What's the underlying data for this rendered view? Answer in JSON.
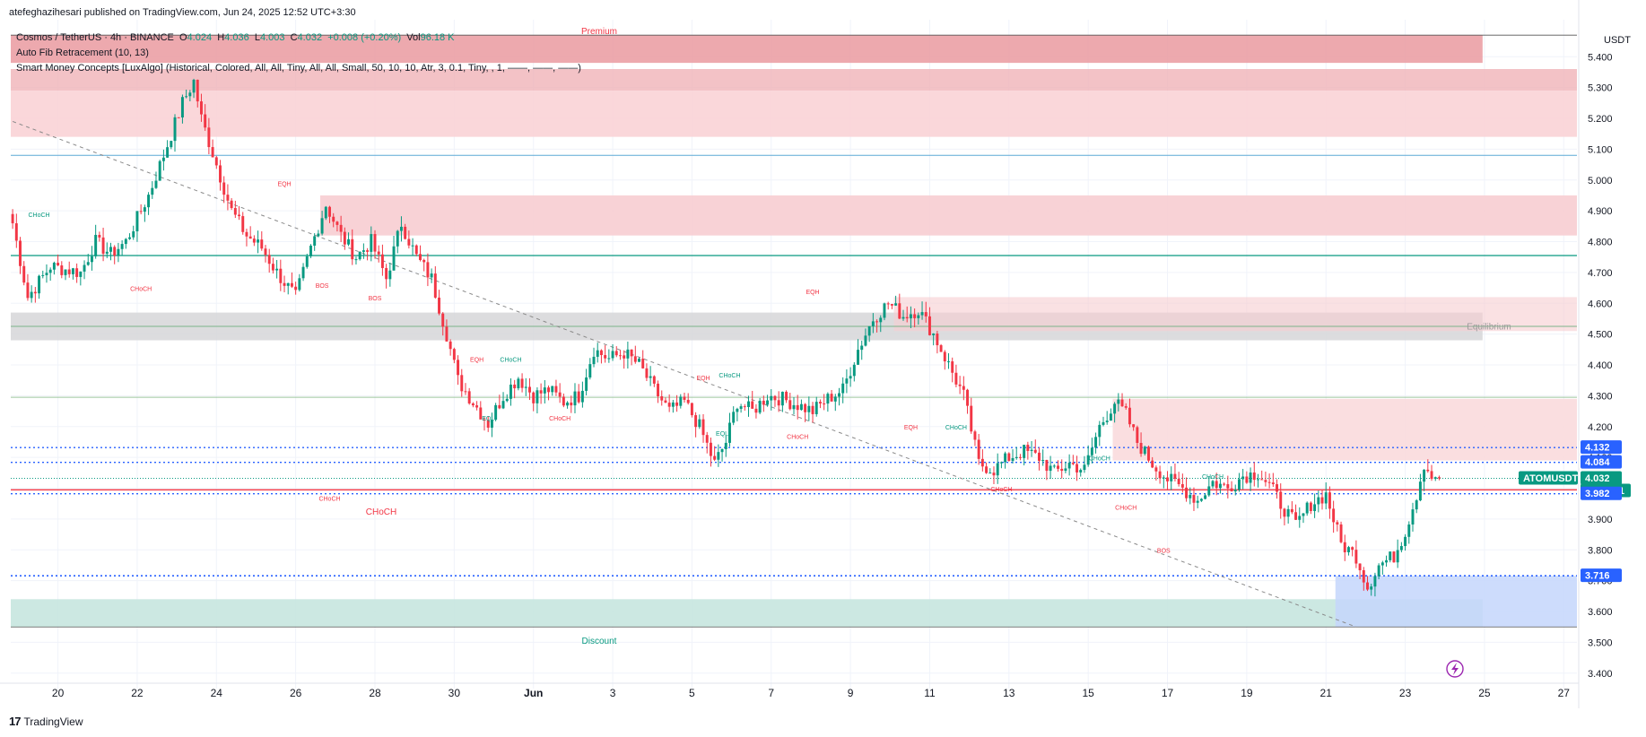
{
  "header": {
    "publisher": "atefeghazihesari published on TradingView.com, Jun 24, 2025 12:52 UTC+3:30"
  },
  "legend": {
    "symbol": "Cosmos / TetherUS · 4h · BINANCE",
    "o_label": "O",
    "o": "4.024",
    "h_label": "H",
    "h": "4.036",
    "l_label": "L",
    "l": "4.003",
    "c_label": "C",
    "c": "4.032",
    "change": "+0.008 (+0.20%)",
    "vol_label": "Vol",
    "vol": "96.18 K",
    "indicator1": "Auto Fib Retracement (10, 13)",
    "indicator2": "Smart Money Concepts [LuxAlgo] (Historical, Colored, All, All, Tiny, All, All, Small, 50, 10, 10, Atr, 3, 0.1, Tiny, , 1, ——, ——, ——)"
  },
  "footer": {
    "brand": "TradingView"
  },
  "colors": {
    "up": "#089981",
    "down": "#f23645",
    "fib_blue": "#2962ff",
    "axis_text": "#131722"
  },
  "chart_data": {
    "type": "candlestick",
    "symbol": "ATOMUSDT",
    "interval": "4h",
    "currency": "USDT",
    "ylim": [
      3.35,
      5.52
    ],
    "y_ticks": [
      3.4,
      3.5,
      3.6,
      3.7,
      3.8,
      3.9,
      4.0,
      4.1,
      4.2,
      4.3,
      4.4,
      4.5,
      4.6,
      4.7,
      4.8,
      4.9,
      5.0,
      5.1,
      5.2,
      5.3,
      5.4
    ],
    "x_ticks": [
      "20",
      "22",
      "24",
      "26",
      "28",
      "30",
      "Jun",
      "3",
      "5",
      "7",
      "9",
      "11",
      "13",
      "15",
      "17",
      "19",
      "21",
      "23",
      "25",
      "27"
    ],
    "price_badges": [
      {
        "label": "4.132",
        "value": 4.132,
        "color": "#2962ff"
      },
      {
        "label": "4.084",
        "value": 4.084,
        "color": "#2962ff"
      },
      {
        "label": "ATOMUSDT",
        "value": 4.032,
        "color": "#089981"
      },
      {
        "label": "4.032",
        "value": 4.032,
        "color": "#089981"
      },
      {
        "label": "02:37:01",
        "value": 4.032,
        "color": "#089981"
      },
      {
        "label": "3.982",
        "value": 3.982,
        "color": "#2962ff"
      },
      {
        "label": "3.716",
        "value": 3.716,
        "color": "#2962ff"
      }
    ],
    "zone_labels": {
      "premium": "Premium",
      "discount": "Discount",
      "equilibrium": "Equilibrium"
    },
    "close_anchors": [
      [
        0,
        4.86
      ],
      [
        4,
        4.62
      ],
      [
        10,
        4.72
      ],
      [
        18,
        4.7
      ],
      [
        22,
        4.8
      ],
      [
        26,
        4.76
      ],
      [
        30,
        4.8
      ],
      [
        36,
        4.95
      ],
      [
        40,
        5.08
      ],
      [
        45,
        5.25
      ],
      [
        48,
        5.32
      ],
      [
        50,
        5.2
      ],
      [
        54,
        5.05
      ],
      [
        58,
        4.9
      ],
      [
        62,
        4.82
      ],
      [
        66,
        4.78
      ],
      [
        70,
        4.7
      ],
      [
        75,
        4.62
      ],
      [
        79,
        4.78
      ],
      [
        83,
        4.92
      ],
      [
        87,
        4.82
      ],
      [
        91,
        4.75
      ],
      [
        95,
        4.8
      ],
      [
        99,
        4.68
      ],
      [
        103,
        4.86
      ],
      [
        107,
        4.75
      ],
      [
        111,
        4.68
      ],
      [
        115,
        4.5
      ],
      [
        118,
        4.35
      ],
      [
        122,
        4.28
      ],
      [
        126,
        4.21
      ],
      [
        130,
        4.3
      ],
      [
        134,
        4.36
      ],
      [
        138,
        4.3
      ],
      [
        142,
        4.32
      ],
      [
        146,
        4.28
      ],
      [
        150,
        4.3
      ],
      [
        154,
        4.45
      ],
      [
        158,
        4.42
      ],
      [
        162,
        4.44
      ],
      [
        166,
        4.4
      ],
      [
        170,
        4.32
      ],
      [
        174,
        4.25
      ],
      [
        178,
        4.28
      ],
      [
        182,
        4.2
      ],
      [
        186,
        4.08
      ],
      [
        189,
        4.15
      ],
      [
        192,
        4.28
      ],
      [
        196,
        4.25
      ],
      [
        200,
        4.3
      ],
      [
        204,
        4.29
      ],
      [
        208,
        4.27
      ],
      [
        212,
        4.25
      ],
      [
        216,
        4.29
      ],
      [
        220,
        4.32
      ],
      [
        224,
        4.45
      ],
      [
        228,
        4.55
      ],
      [
        232,
        4.6
      ],
      [
        236,
        4.56
      ],
      [
        240,
        4.58
      ],
      [
        244,
        4.5
      ],
      [
        248,
        4.4
      ],
      [
        252,
        4.3
      ],
      [
        256,
        4.08
      ],
      [
        260,
        4.06
      ],
      [
        264,
        4.1
      ],
      [
        268,
        4.12
      ],
      [
        272,
        4.1
      ],
      [
        276,
        4.05
      ],
      [
        280,
        4.08
      ],
      [
        284,
        4.06
      ],
      [
        288,
        4.2
      ],
      [
        292,
        4.28
      ],
      [
        295,
        4.24
      ],
      [
        298,
        4.15
      ],
      [
        302,
        4.08
      ],
      [
        306,
        4.03
      ],
      [
        310,
        4.0
      ],
      [
        314,
        3.96
      ],
      [
        318,
        4.02
      ],
      [
        322,
        4.0
      ],
      [
        326,
        4.04
      ],
      [
        330,
        4.05
      ],
      [
        333,
        4.01
      ],
      [
        336,
        3.95
      ],
      [
        340,
        3.88
      ],
      [
        344,
        3.95
      ],
      [
        348,
        3.98
      ],
      [
        352,
        3.82
      ],
      [
        356,
        3.78
      ],
      [
        359,
        3.68
      ],
      [
        362,
        3.75
      ],
      [
        366,
        3.78
      ],
      [
        369,
        3.86
      ],
      [
        372,
        3.98
      ],
      [
        374,
        4.08
      ],
      [
        377,
        4.02
      ],
      [
        378,
        4.032
      ]
    ],
    "annotations": [
      {
        "text": "CHoCH",
        "date": 7,
        "y": 4.88,
        "color": "#089981"
      },
      {
        "text": "CHoCH",
        "date": 34,
        "y": 4.64,
        "color": "#f23645"
      },
      {
        "text": "EQH",
        "date": 72,
        "y": 4.98,
        "color": "#f23645"
      },
      {
        "text": "BOS",
        "date": 82,
        "y": 4.65,
        "color": "#f23645"
      },
      {
        "text": "BOS",
        "date": 96,
        "y": 4.61,
        "color": "#f23645"
      },
      {
        "text": "EQH",
        "date": 123,
        "y": 4.41,
        "color": "#f23645"
      },
      {
        "text": "CHoCH",
        "date": 132,
        "y": 4.41,
        "color": "#089981"
      },
      {
        "text": "EQL",
        "date": 126,
        "y": 4.22,
        "color": "#089981"
      },
      {
        "text": "CHoCH",
        "date": 145,
        "y": 4.22,
        "color": "#f23645"
      },
      {
        "text": "EQH",
        "date": 183,
        "y": 4.35,
        "color": "#f23645"
      },
      {
        "text": "CHoCH",
        "date": 190,
        "y": 4.36,
        "color": "#089981"
      },
      {
        "text": "EQL",
        "date": 188,
        "y": 4.17,
        "color": "#089981"
      },
      {
        "text": "CHoCH",
        "date": 208,
        "y": 4.16,
        "color": "#f23645"
      },
      {
        "text": "EQH",
        "date": 212,
        "y": 4.63,
        "color": "#f23645"
      },
      {
        "text": "CHoCH",
        "date": 84,
        "y": 3.96,
        "color": "#f23645"
      },
      {
        "text": "EQH",
        "date": 238,
        "y": 4.19,
        "color": "#f23645"
      },
      {
        "text": "CHoCH",
        "date": 250,
        "y": 4.19,
        "color": "#089981"
      },
      {
        "text": "CHoCH",
        "date": 288,
        "y": 4.09,
        "color": "#089981"
      },
      {
        "text": "CHoCH",
        "date": 262,
        "y": 3.99,
        "color": "#f23645"
      },
      {
        "text": "CHoCH",
        "date": 295,
        "y": 3.93,
        "color": "#f23645"
      },
      {
        "text": "CHoCH",
        "date": 318,
        "y": 4.03,
        "color": "#089981"
      },
      {
        "text": "BOS",
        "date": 305,
        "y": 3.79,
        "color": "#f23645"
      }
    ]
  }
}
